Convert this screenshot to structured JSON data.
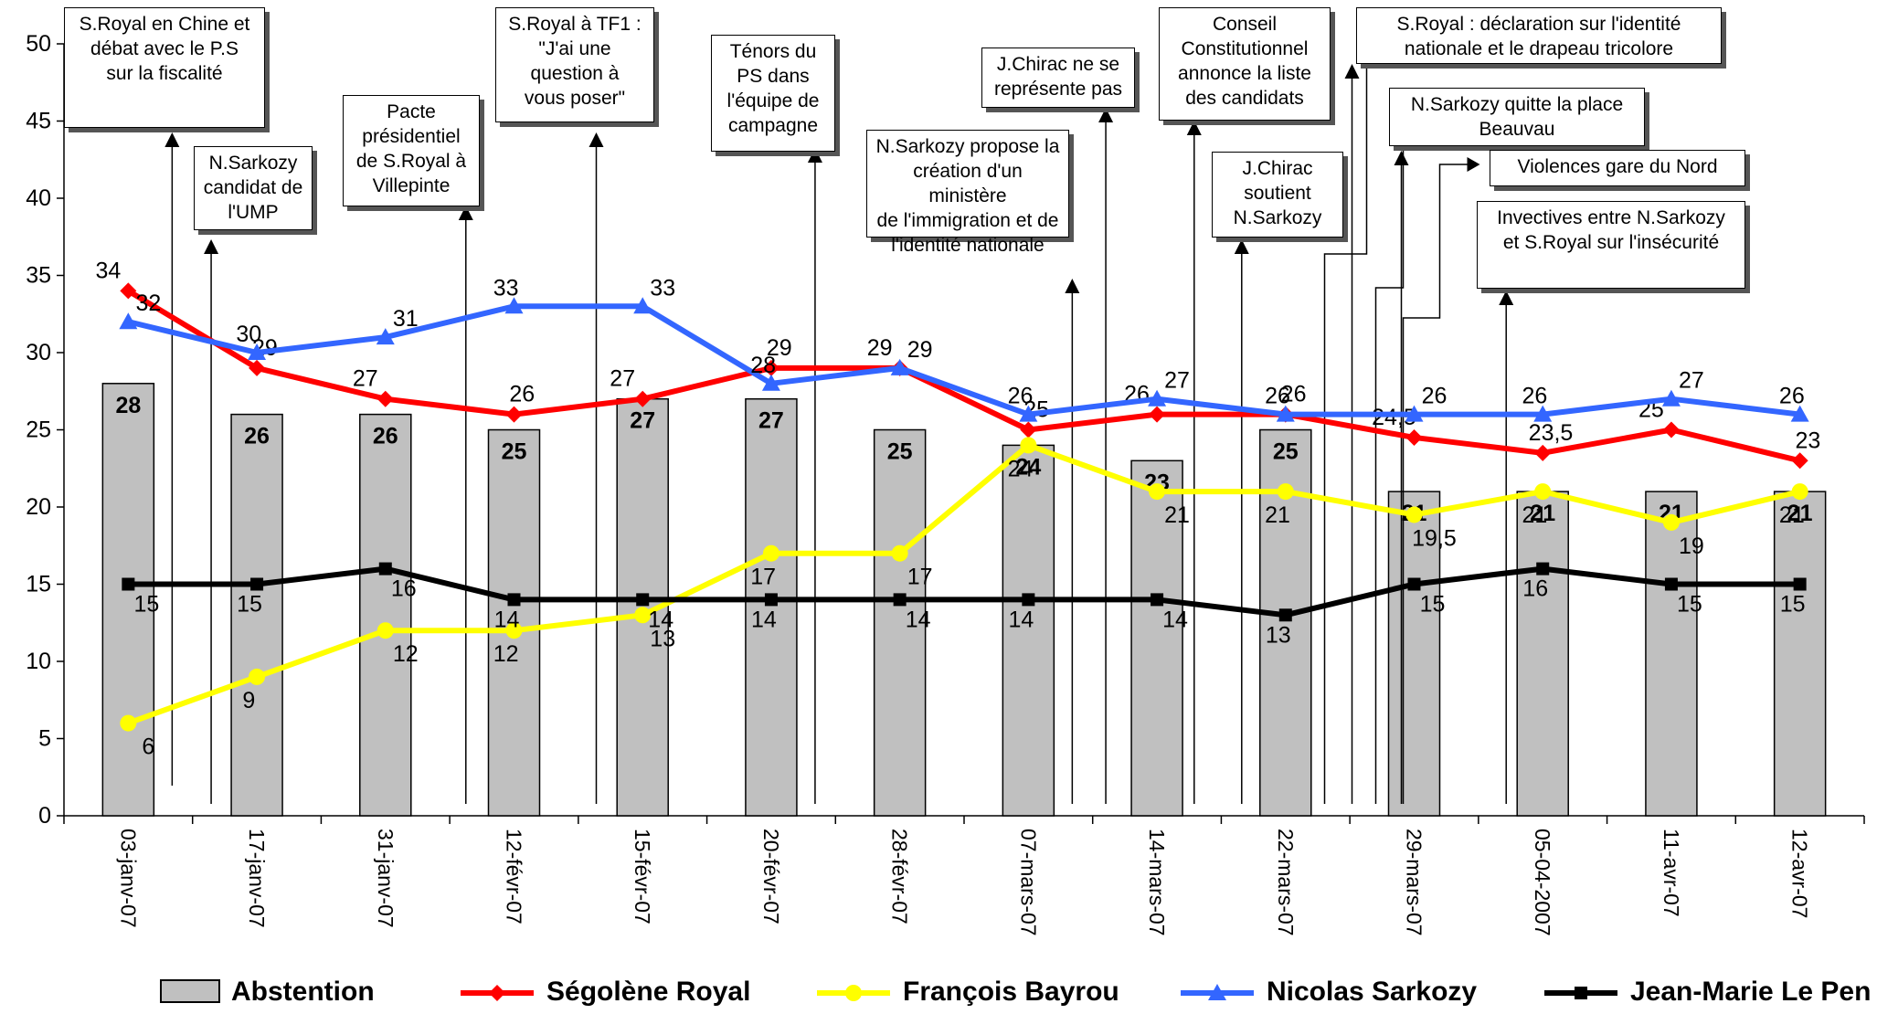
{
  "chart_data": {
    "type": "bar+line",
    "categories": [
      "03-janv-07",
      "17-janv-07",
      "31-janv-07",
      "12-févr-07",
      "15-févr-07",
      "20-févr-07",
      "28-févr-07",
      "07-mars-07",
      "14-mars-07",
      "22-mars-07",
      "29-mars-07",
      "05-04-2007",
      "11-avr-07",
      "12-avr-07"
    ],
    "ylim": [
      0,
      50
    ],
    "yticks": [
      0,
      5,
      10,
      15,
      20,
      25,
      30,
      35,
      40,
      45,
      50
    ],
    "bars": {
      "name": "Abstention",
      "color": "#c0c0c0",
      "values": [
        28,
        26,
        26,
        25,
        27,
        27,
        25,
        24,
        23,
        25,
        21,
        21,
        21,
        21
      ],
      "labels": [
        "28",
        "26",
        "26",
        "25",
        "27",
        "27",
        "25",
        "24",
        "23",
        "25",
        "21",
        "21",
        "21",
        "21"
      ]
    },
    "series": [
      {
        "name": "Ségolène Royal",
        "color": "#ff0000",
        "marker": "diamond",
        "values": [
          34,
          29,
          27,
          26,
          27,
          29,
          29,
          25,
          26,
          26,
          24.5,
          23.5,
          25,
          23
        ],
        "labels": [
          "34",
          "29",
          "27",
          "26",
          "27",
          "29",
          "29",
          "25",
          "26",
          "26",
          "24,5",
          "23,5",
          "25",
          "23"
        ]
      },
      {
        "name": "François Bayrou",
        "color": "#ffff00",
        "marker": "circle",
        "values": [
          6,
          9,
          12,
          12,
          13,
          17,
          17,
          24,
          21,
          21,
          19.5,
          21,
          19,
          21
        ],
        "labels": [
          "6",
          "9",
          "12",
          "12",
          "13",
          "17",
          "17",
          "24",
          "21",
          "21",
          "19,5",
          "21",
          "19",
          "21"
        ]
      },
      {
        "name": "Nicolas Sarkozy",
        "color": "#3366ff",
        "marker": "triangle",
        "values": [
          32,
          30,
          31,
          33,
          33,
          28,
          29,
          26,
          27,
          26,
          26,
          26,
          27,
          26
        ],
        "labels": [
          "32",
          "30",
          "31",
          "33",
          "33",
          "28",
          "29",
          "26",
          "27",
          "26",
          "26",
          "26",
          "27",
          "26"
        ]
      },
      {
        "name": "Jean-Marie Le Pen",
        "color": "#000000",
        "marker": "square",
        "values": [
          15,
          15,
          16,
          14,
          14,
          14,
          14,
          14,
          14,
          13,
          15,
          16,
          15,
          15
        ],
        "labels": [
          "15",
          "15",
          "16",
          "14",
          "14",
          "14",
          "14",
          "14",
          "14",
          "13",
          "15",
          "16",
          "15",
          "15"
        ]
      }
    ],
    "annotations": [
      {
        "lines": [
          "S.Royal en Chine et",
          "débat avec le P.S",
          "sur la fiscalité"
        ]
      },
      {
        "lines": [
          "N.Sarkozy",
          "candidat de",
          "l'UMP"
        ]
      },
      {
        "lines": [
          "Pacte",
          "présidentiel",
          "de S.Royal à",
          "Villepinte"
        ]
      },
      {
        "lines": [
          "S.Royal à TF1 :",
          "\"J'ai une",
          "question à",
          "vous poser\""
        ]
      },
      {
        "lines": [
          "Ténors du",
          "PS dans",
          "l'équipe de",
          "campagne"
        ]
      },
      {
        "lines": [
          "N.Sarkozy propose la",
          "création d'un ministère",
          "de l'immigration et de",
          "l'identité nationale"
        ]
      },
      {
        "lines": [
          "J.Chirac ne se",
          "représente pas"
        ]
      },
      {
        "lines": [
          "Conseil",
          "Constitutionnel",
          "annonce la liste",
          "des candidats"
        ]
      },
      {
        "lines": [
          "J.Chirac",
          "soutient",
          "N.Sarkozy"
        ]
      },
      {
        "lines": [
          "S.Royal : déclaration sur l'identité",
          "nationale et le drapeau tricolore"
        ]
      },
      {
        "lines": [
          "N.Sarkozy quitte la place",
          "Beauvau"
        ]
      },
      {
        "lines": [
          "Violences gare du Nord"
        ]
      },
      {
        "lines": [
          "Invectives entre N.Sarkozy",
          "et S.Royal sur l'insécurité"
        ]
      }
    ],
    "legend": {
      "position": "bottom"
    }
  }
}
